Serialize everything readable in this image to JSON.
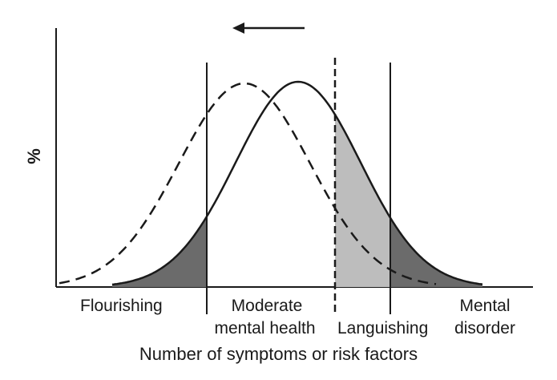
{
  "diagram": {
    "y_axis_label": "%",
    "x_axis_label": "Number of symptoms or risk factors",
    "regions": {
      "flourishing": "Flourishing",
      "moderate_line1": "Moderate",
      "moderate_line2": "mental health",
      "languishing": "Languishing",
      "disorder_line1": "Mental",
      "disorder_line2": "disorder"
    },
    "colors": {
      "ink": "#1a1a1a",
      "dark_shade": "#6b6b6b",
      "light_shade": "#bdbdbd"
    }
  }
}
